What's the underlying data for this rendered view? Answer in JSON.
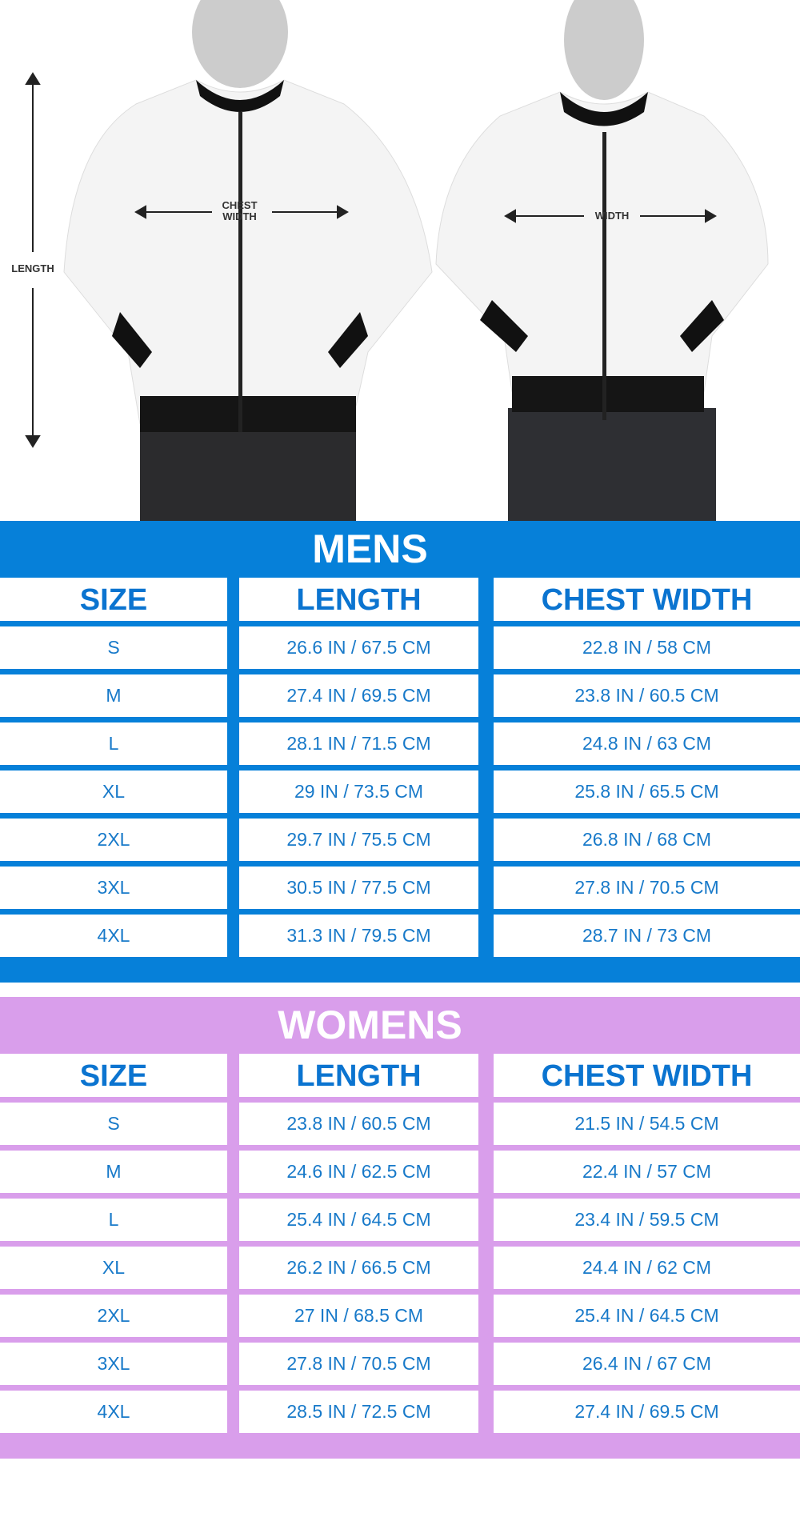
{
  "photo": {
    "length_label": "LENGTH",
    "chest_width_label": "CHEST WIDTH",
    "width_label": "WIDTH"
  },
  "colors": {
    "mens": "#0680d9",
    "womens": "#d99eeb",
    "text": "#1779c9"
  },
  "columns": [
    "SIZE",
    "LENGTH",
    "CHEST WIDTH"
  ],
  "mens": {
    "title": "MENS",
    "rows": [
      [
        "S",
        "26.6 IN / 67.5 CM",
        "22.8 IN / 58 CM"
      ],
      [
        "M",
        "27.4 IN / 69.5 CM",
        "23.8 IN / 60.5 CM"
      ],
      [
        "L",
        "28.1 IN / 71.5 CM",
        "24.8 IN / 63 CM"
      ],
      [
        "XL",
        "29 IN / 73.5 CM",
        "25.8 IN / 65.5 CM"
      ],
      [
        "2XL",
        "29.7 IN / 75.5 CM",
        "26.8 IN / 68 CM"
      ],
      [
        "3XL",
        "30.5 IN / 77.5 CM",
        "27.8 IN / 70.5 CM"
      ],
      [
        "4XL",
        "31.3 IN / 79.5 CM",
        "28.7 IN / 73 CM"
      ]
    ]
  },
  "womens": {
    "title": "WOMENS",
    "rows": [
      [
        "S",
        "23.8 IN / 60.5 CM",
        "21.5 IN / 54.5 CM"
      ],
      [
        "M",
        "24.6 IN / 62.5 CM",
        "22.4 IN /  57 CM"
      ],
      [
        "L",
        "25.4 IN / 64.5 CM",
        "23.4 IN / 59.5 CM"
      ],
      [
        "XL",
        "26.2 IN / 66.5 CM",
        "24.4 IN / 62 CM"
      ],
      [
        "2XL",
        "27 IN / 68.5 CM",
        "25.4 IN / 64.5 CM"
      ],
      [
        "3XL",
        "27.8 IN / 70.5 CM",
        "26.4 IN / 67 CM"
      ],
      [
        "4XL",
        "28.5 IN / 72.5 CM",
        "27.4 IN / 69.5 CM"
      ]
    ]
  }
}
